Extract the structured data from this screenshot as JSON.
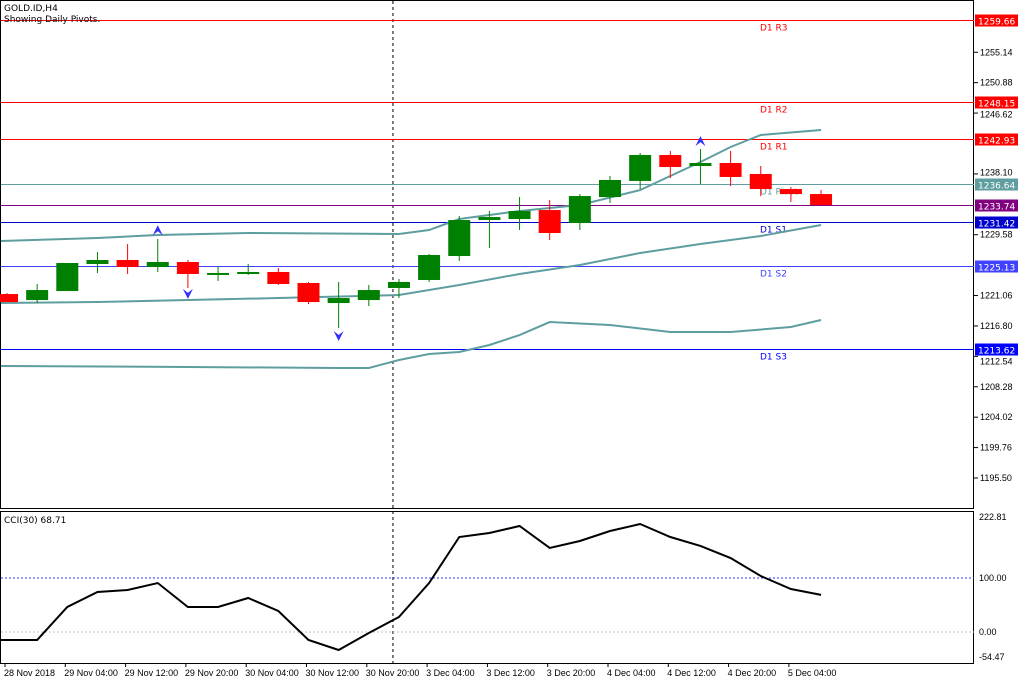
{
  "header": {
    "symbol": "GOLD.ID,H4",
    "subtitle": "Showing Daily Pivots."
  },
  "colors": {
    "bull": "#008000",
    "bear": "#ff0000",
    "band": "#5f9ea0",
    "cci": "#000000",
    "bid": "#800080"
  },
  "chart_data": [
    {
      "type": "candlestick",
      "title": "GOLD.ID,H4",
      "ylim": [
        1195.5,
        1259.66
      ],
      "y_ticks": [
        "1255.14",
        "1250.88",
        "1246.62",
        "1238.10",
        "1229.58",
        "1221.06",
        "1216.80",
        "1212.54",
        "1208.28",
        "1204.02",
        "1199.76",
        "1195.50"
      ],
      "candles": [
        {
          "o": 1221.27,
          "h": 1221.4,
          "l": 1220.15,
          "c": 1220.15
        },
        {
          "o": 1220.43,
          "h": 1222.68,
          "l": 1220.01,
          "c": 1221.83
        },
        {
          "o": 1221.69,
          "h": 1225.62,
          "l": 1221.69,
          "c": 1225.62
        },
        {
          "o": 1225.48,
          "h": 1227.16,
          "l": 1224.22,
          "c": 1226.04
        },
        {
          "o": 1226.04,
          "h": 1228.28,
          "l": 1224.08,
          "c": 1225.06
        },
        {
          "o": 1225.06,
          "h": 1228.98,
          "l": 1224.36,
          "c": 1225.76
        },
        {
          "o": 1225.76,
          "h": 1226.04,
          "l": 1222.12,
          "c": 1224.08
        },
        {
          "o": 1223.94,
          "h": 1225.06,
          "l": 1223.1,
          "c": 1224.22
        },
        {
          "o": 1224.08,
          "h": 1225.48,
          "l": 1223.94,
          "c": 1224.36
        },
        {
          "o": 1224.36,
          "h": 1224.92,
          "l": 1222.54,
          "c": 1222.68
        },
        {
          "o": 1222.82,
          "h": 1222.96,
          "l": 1219.87,
          "c": 1220.15
        },
        {
          "o": 1220.01,
          "h": 1222.96,
          "l": 1216.51,
          "c": 1220.71
        },
        {
          "o": 1220.43,
          "h": 1222.54,
          "l": 1219.59,
          "c": 1221.83
        },
        {
          "o": 1222.12,
          "h": 1223.38,
          "l": 1220.71,
          "c": 1222.96
        },
        {
          "o": 1223.24,
          "h": 1226.88,
          "l": 1222.96,
          "c": 1226.74
        },
        {
          "o": 1226.6,
          "h": 1232.2,
          "l": 1225.9,
          "c": 1231.64
        },
        {
          "o": 1231.64,
          "h": 1232.9,
          "l": 1227.72,
          "c": 1232.06
        },
        {
          "o": 1231.78,
          "h": 1234.86,
          "l": 1230.24,
          "c": 1232.9
        },
        {
          "o": 1233.04,
          "h": 1234.44,
          "l": 1228.84,
          "c": 1229.82
        },
        {
          "o": 1231.22,
          "h": 1235.28,
          "l": 1230.24,
          "c": 1235.0
        },
        {
          "o": 1234.86,
          "h": 1237.81,
          "l": 1234.02,
          "c": 1237.25
        },
        {
          "o": 1237.11,
          "h": 1241.03,
          "l": 1235.98,
          "c": 1240.75
        },
        {
          "o": 1240.75,
          "h": 1241.31,
          "l": 1237.53,
          "c": 1239.07
        },
        {
          "o": 1239.21,
          "h": 1241.59,
          "l": 1236.68,
          "c": 1239.63
        },
        {
          "o": 1239.63,
          "h": 1241.31,
          "l": 1236.4,
          "c": 1237.67
        },
        {
          "o": 1238.09,
          "h": 1239.21,
          "l": 1235.0,
          "c": 1235.98
        },
        {
          "o": 1235.98,
          "h": 1236.26,
          "l": 1234.16,
          "c": 1235.28
        },
        {
          "o": 1235.28,
          "h": 1235.84,
          "l": 1233.74,
          "c": 1233.74
        }
      ],
      "bands": {
        "upper": [
          [
            0,
            1228.7
          ],
          [
            3,
            1229.12
          ],
          [
            5,
            1229.54
          ],
          [
            8,
            1229.82
          ],
          [
            13,
            1229.68
          ],
          [
            14,
            1230.24
          ],
          [
            15,
            1231.78
          ],
          [
            17,
            1232.9
          ],
          [
            19,
            1233.74
          ],
          [
            21,
            1235.84
          ],
          [
            22,
            1237.81
          ],
          [
            23,
            1239.77
          ],
          [
            24,
            1241.87
          ],
          [
            25,
            1243.55
          ],
          [
            27,
            1244.25
          ]
        ],
        "middle": [
          [
            0,
            1220.01
          ],
          [
            3,
            1220.15
          ],
          [
            6,
            1220.43
          ],
          [
            9,
            1220.71
          ],
          [
            13,
            1221.13
          ],
          [
            15,
            1222.54
          ],
          [
            17,
            1224.08
          ],
          [
            19,
            1225.34
          ],
          [
            21,
            1227.02
          ],
          [
            23,
            1228.28
          ],
          [
            25,
            1229.4
          ],
          [
            27,
            1230.94
          ]
        ],
        "lower": [
          [
            0,
            1211.19
          ],
          [
            6,
            1211.05
          ],
          [
            11,
            1210.91
          ],
          [
            12,
            1210.91
          ],
          [
            13,
            1212.03
          ],
          [
            14,
            1212.87
          ],
          [
            15,
            1213.15
          ],
          [
            16,
            1214.13
          ],
          [
            17,
            1215.53
          ],
          [
            18,
            1217.35
          ],
          [
            20,
            1216.93
          ],
          [
            22,
            1215.95
          ],
          [
            24,
            1215.95
          ],
          [
            26,
            1216.65
          ],
          [
            27,
            1217.63
          ]
        ]
      },
      "fractals": [
        {
          "index": 5,
          "dir": "up",
          "price": 1230.2
        },
        {
          "index": 6,
          "dir": "down",
          "price": 1221.3
        },
        {
          "index": 11,
          "dir": "down",
          "price": 1215.4
        },
        {
          "index": 23,
          "dir": "up",
          "price": 1242.7
        }
      ],
      "pivots": [
        {
          "label": "D1 R3",
          "value": "1259.66",
          "color": "#ff0000"
        },
        {
          "label": "D1 R2",
          "value": "1248.15",
          "color": "#ff0000"
        },
        {
          "label": "D1 R1",
          "value": "1242.93",
          "color": "#ff0000"
        },
        {
          "label": "D1 Pivot",
          "value": "1236.64",
          "color": "#5f9ea0"
        },
        {
          "label": "D1 S1",
          "value": "1231.42",
          "color": "#0000cd"
        },
        {
          "label": "D1 S2",
          "value": "1225.13",
          "color": "#4040ff"
        },
        {
          "label": "D1 S3",
          "value": "1213.62",
          "color": "#0000ff"
        }
      ],
      "bid": {
        "value": "1233.74"
      }
    },
    {
      "type": "line",
      "title": "CCI(30) 68.71",
      "ylim": [
        -54.47,
        222.81
      ],
      "y_ticks": [
        "222.81",
        "100.00",
        "0.00",
        "-54.47"
      ],
      "levels": [
        100,
        0
      ],
      "values": [
        -14.8,
        -14.8,
        46.3,
        74.1,
        77.8,
        90.7,
        46.3,
        46.3,
        63.0,
        38.9,
        -14.8,
        -33.3,
        -1.9,
        27.8,
        90.7,
        175.9,
        183.3,
        196.3,
        155.6,
        168.5,
        187.0,
        200.0,
        175.9,
        159.3,
        137.0,
        103.7,
        79.6,
        68.71
      ]
    }
  ],
  "time_axis": [
    "28 Nov 2018",
    "29 Nov 04:00",
    "29 Nov 12:00",
    "29 Nov 20:00",
    "30 Nov 04:00",
    "30 Nov 12:00",
    "30 Nov 20:00",
    "3 Dec 04:00",
    "3 Dec 12:00",
    "3 Dec 20:00",
    "4 Dec 04:00",
    "4 Dec 12:00",
    "4 Dec 20:00",
    "5 Dec 04:00"
  ],
  "crosshair_index": 13
}
